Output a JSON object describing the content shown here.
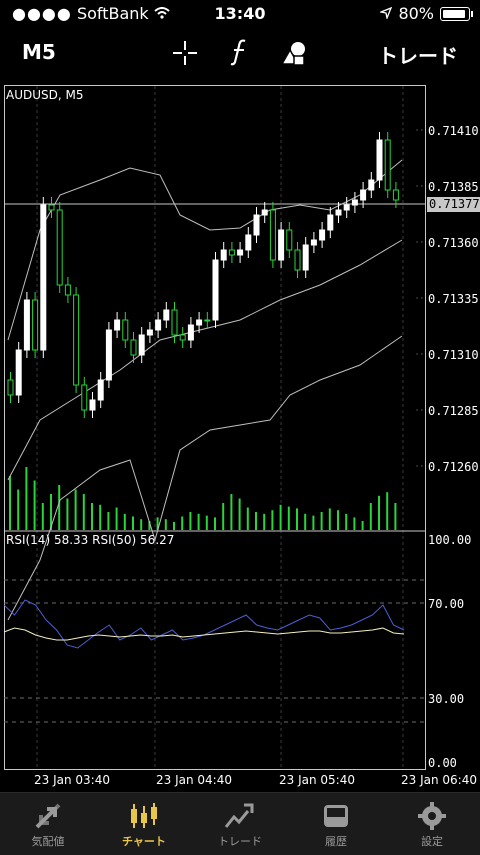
{
  "status_bar": {
    "carrier": "SoftBank",
    "time": "13:40",
    "battery": "80%"
  },
  "toolbar": {
    "timeframe": "M5",
    "trade_label": "トレード"
  },
  "chart": {
    "symbol_label": "AUDUSD, M5",
    "current_price": "0.71377",
    "price_axis": [
      "0.71410",
      "0.71385",
      "0.71360",
      "0.71335",
      "0.71310",
      "0.71285",
      "0.71260"
    ],
    "rsi_label": "RSI(14) 58.33 RSI(50) 56.27",
    "rsi_axis": [
      "100.00",
      "70.00",
      "30.00",
      "0.00"
    ],
    "time_axis": [
      "23 Jan 03:40",
      "23 Jan 04:40",
      "23 Jan 05:40",
      "23 Jan 06:40"
    ],
    "colors": {
      "bull": "#ffffff",
      "bear": "#2bd43a",
      "ma": "#bfbfbf",
      "rsi14": "#4d5dd6",
      "rsi50": "#f2f0c0"
    }
  },
  "chart_data": {
    "type": "line",
    "x": [
      "23 Jan 03:40",
      "23 Jan 04:40",
      "23 Jan 05:40",
      "23 Jan 06:40"
    ],
    "ylim": [
      0.71245,
      0.71425
    ],
    "series": [],
    "rsi": {
      "ylim": [
        0,
        100
      ],
      "levels": [
        30,
        70
      ],
      "rsi14_last": 58.33,
      "rsi50_last": 56.27
    }
  },
  "tabs": [
    {
      "label": "気配値",
      "icon": "quotes-arrows-icon",
      "active": false
    },
    {
      "label": "チャート",
      "icon": "candles-icon",
      "active": true
    },
    {
      "label": "トレード",
      "icon": "trade-chart-icon",
      "active": false
    },
    {
      "label": "履歴",
      "icon": "history-tray-icon",
      "active": false
    },
    {
      "label": "設定",
      "icon": "gear-icon",
      "active": false
    }
  ]
}
